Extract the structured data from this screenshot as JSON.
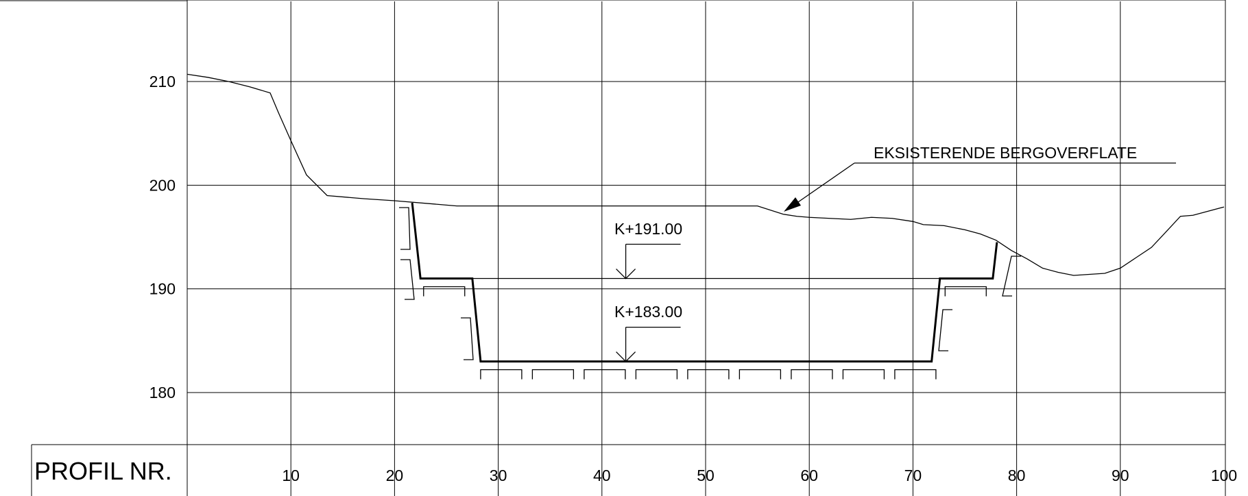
{
  "chart_data": {
    "type": "cross-section-profile",
    "xlim": [
      0,
      100
    ],
    "ylim": [
      175,
      217
    ],
    "x_ticks": [
      10,
      20,
      30,
      40,
      50,
      60,
      70,
      80,
      90,
      100
    ],
    "y_ticks": [
      210,
      200,
      190,
      180
    ],
    "title_cell": "PROFIL NR.",
    "annotations": {
      "surface_label": "EKSISTERENDE BERGOVERFLATE",
      "level_upper": "K+191.00",
      "level_lower": "K+183.00"
    },
    "terrain": [
      [
        0,
        210.7
      ],
      [
        2,
        210.4
      ],
      [
        4,
        210.0
      ],
      [
        6,
        209.5
      ],
      [
        8,
        208.9
      ],
      [
        8.8,
        207.0
      ],
      [
        10,
        204.3
      ],
      [
        11.5,
        201.0
      ],
      [
        13.5,
        199.0
      ],
      [
        17,
        198.7
      ],
      [
        20,
        198.5
      ],
      [
        26,
        198.0
      ],
      [
        40,
        198.0
      ],
      [
        55,
        198.0
      ],
      [
        57.5,
        197.2
      ],
      [
        58.8,
        197.0
      ],
      [
        60,
        196.9
      ],
      [
        62,
        196.8
      ],
      [
        64,
        196.7
      ],
      [
        66,
        196.9
      ],
      [
        68,
        196.8
      ],
      [
        70,
        196.5
      ],
      [
        71,
        196.2
      ],
      [
        73,
        196.1
      ],
      [
        75,
        195.7
      ],
      [
        76.5,
        195.3
      ],
      [
        78,
        194.7
      ],
      [
        79.5,
        193.7
      ],
      [
        81,
        192.9
      ],
      [
        82.5,
        192.0
      ],
      [
        84,
        191.6
      ],
      [
        85.5,
        191.3
      ],
      [
        87,
        191.4
      ],
      [
        88.5,
        191.5
      ],
      [
        90,
        192.0
      ],
      [
        91.5,
        193.0
      ],
      [
        93,
        194.0
      ],
      [
        94.5,
        195.6
      ],
      [
        95.8,
        197.0
      ],
      [
        97,
        197.1
      ],
      [
        100,
        197.9
      ]
    ],
    "excavation_outline": [
      [
        21.7,
        198.3
      ],
      [
        22.5,
        191.0
      ],
      [
        27.5,
        191.0
      ],
      [
        28.3,
        183.0
      ],
      [
        71.8,
        183.0
      ],
      [
        72.6,
        191.0
      ],
      [
        77.7,
        191.0
      ],
      [
        78.1,
        194.5
      ]
    ],
    "upper_bench_level": 191.0,
    "lower_bench_level": 183.0
  }
}
